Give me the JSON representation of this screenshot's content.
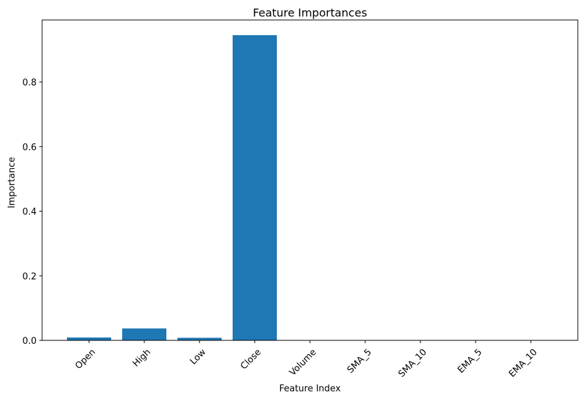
{
  "chart_data": {
    "type": "bar",
    "title": "Feature Importances",
    "xlabel": "Feature Index",
    "ylabel": "Importance",
    "categories": [
      "Open",
      "High",
      "Low",
      "Close",
      "Volume",
      "SMA_5",
      "SMA_10",
      "EMA_5",
      "EMA_10"
    ],
    "values": [
      0.009,
      0.037,
      0.008,
      0.945,
      0.0,
      0.0,
      0.0,
      0.0,
      0.0
    ],
    "yticks": [
      0.0,
      0.2,
      0.4,
      0.6,
      0.8
    ],
    "ytick_labels": [
      "0.0",
      "0.2",
      "0.4",
      "0.6",
      "0.8"
    ],
    "ylim": [
      0,
      0.992
    ],
    "grid": false,
    "legend": "none",
    "xtick_rotation": 45,
    "bar_color": "#1f77b4"
  }
}
